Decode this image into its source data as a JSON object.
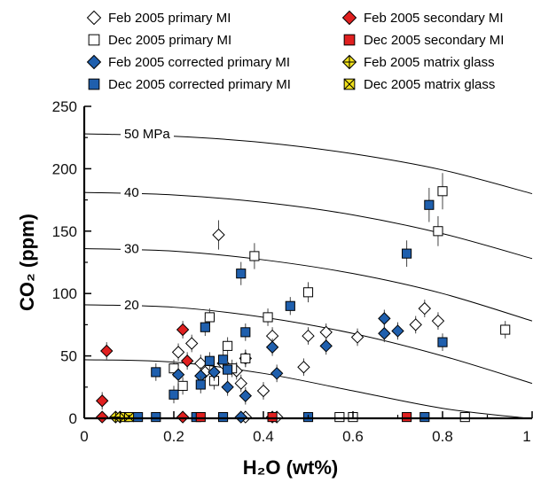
{
  "chart_data": {
    "type": "scatter",
    "xlabel": "H₂O (wt%)",
    "ylabel": "CO₂ (ppm)",
    "xlim": [
      0,
      1
    ],
    "ylim": [
      0,
      250
    ],
    "x_ticks": [
      "0",
      "0.2",
      "0.4",
      "0.6",
      "0.8",
      "1"
    ],
    "y_ticks": [
      "0",
      "50",
      "100",
      "150",
      "200",
      "250"
    ],
    "legend_position": "top (above plot, two columns)",
    "isobars": [
      {
        "label": "50 MPa",
        "y_at_zero": 228,
        "points": [
          [
            0,
            228
          ],
          [
            0.2,
            226
          ],
          [
            0.4,
            221
          ],
          [
            0.6,
            212
          ],
          [
            0.8,
            199
          ],
          [
            1,
            180
          ]
        ]
      },
      {
        "label": "40",
        "y_at_zero": 181,
        "points": [
          [
            0,
            181
          ],
          [
            0.2,
            179
          ],
          [
            0.4,
            173
          ],
          [
            0.6,
            163
          ],
          [
            0.8,
            148
          ],
          [
            1,
            128
          ]
        ]
      },
      {
        "label": "30",
        "y_at_zero": 136,
        "points": [
          [
            0,
            136
          ],
          [
            0.2,
            134
          ],
          [
            0.4,
            127
          ],
          [
            0.6,
            116
          ],
          [
            0.8,
            100
          ],
          [
            1,
            78
          ]
        ]
      },
      {
        "label": "20",
        "y_at_zero": 91,
        "points": [
          [
            0,
            91
          ],
          [
            0.2,
            89
          ],
          [
            0.4,
            81
          ],
          [
            0.6,
            68
          ],
          [
            0.8,
            50
          ],
          [
            1,
            28
          ]
        ]
      },
      {
        "label": "",
        "y_at_zero": 47,
        "points": [
          [
            0,
            47
          ],
          [
            0.2,
            45
          ],
          [
            0.4,
            36
          ],
          [
            0.6,
            22
          ],
          [
            0.8,
            8
          ],
          [
            0.99,
            0
          ]
        ]
      }
    ],
    "series": [
      {
        "name": "Feb 2005 primary MI",
        "marker": "diamond",
        "fill": "#ffffff",
        "stroke": "#000000",
        "points": [
          [
            0.3,
            147
          ],
          [
            0.21,
            53
          ],
          [
            0.24,
            60
          ],
          [
            0.26,
            44
          ],
          [
            0.27,
            37
          ],
          [
            0.31,
            44
          ],
          [
            0.34,
            38
          ],
          [
            0.36,
            48
          ],
          [
            0.35,
            28
          ],
          [
            0.4,
            22
          ],
          [
            0.42,
            66
          ],
          [
            0.49,
            41
          ],
          [
            0.5,
            66
          ],
          [
            0.54,
            69
          ],
          [
            0.61,
            65
          ],
          [
            0.74,
            75
          ],
          [
            0.76,
            88
          ],
          [
            0.79,
            78
          ],
          [
            0.36,
            1
          ],
          [
            0.42,
            1
          ],
          [
            0.43,
            1
          ]
        ]
      },
      {
        "name": "Dec 2005 primary MI",
        "marker": "square",
        "fill": "#ffffff",
        "stroke": "#000000",
        "points": [
          [
            0.2,
            40
          ],
          [
            0.22,
            26
          ],
          [
            0.28,
            81
          ],
          [
            0.29,
            30
          ],
          [
            0.32,
            58
          ],
          [
            0.33,
            40
          ],
          [
            0.36,
            48
          ],
          [
            0.38,
            130
          ],
          [
            0.41,
            81
          ],
          [
            0.5,
            101
          ],
          [
            0.57,
            1
          ],
          [
            0.6,
            1
          ],
          [
            0.79,
            150
          ],
          [
            0.8,
            182
          ],
          [
            0.85,
            1
          ],
          [
            0.94,
            71
          ]
        ]
      },
      {
        "name": "Feb 2005 corrected primary MI",
        "marker": "diamond",
        "fill": "#1f5fad",
        "stroke": "#000000",
        "points": [
          [
            0.21,
            35
          ],
          [
            0.26,
            34
          ],
          [
            0.29,
            37
          ],
          [
            0.32,
            25
          ],
          [
            0.36,
            18
          ],
          [
            0.42,
            57
          ],
          [
            0.43,
            36
          ],
          [
            0.54,
            58
          ],
          [
            0.67,
            80
          ],
          [
            0.67,
            68
          ],
          [
            0.7,
            70
          ],
          [
            0.35,
            1
          ]
        ]
      },
      {
        "name": "Dec 2005 corrected primary MI",
        "marker": "square",
        "fill": "#1f5fad",
        "stroke": "#000000",
        "points": [
          [
            0.16,
            37
          ],
          [
            0.2,
            19
          ],
          [
            0.26,
            27
          ],
          [
            0.27,
            73
          ],
          [
            0.28,
            46
          ],
          [
            0.31,
            47
          ],
          [
            0.32,
            39
          ],
          [
            0.35,
            116
          ],
          [
            0.36,
            69
          ],
          [
            0.46,
            90
          ],
          [
            0.72,
            132
          ],
          [
            0.77,
            171
          ],
          [
            0.8,
            61
          ],
          [
            0.12,
            1
          ],
          [
            0.16,
            1
          ],
          [
            0.25,
            1
          ],
          [
            0.31,
            1
          ],
          [
            0.5,
            1
          ],
          [
            0.76,
            1
          ]
        ]
      },
      {
        "name": "Feb 2005 secondary MI",
        "marker": "diamond",
        "fill": "#e02020",
        "stroke": "#000000",
        "points": [
          [
            0.04,
            14
          ],
          [
            0.05,
            54
          ],
          [
            0.22,
            71
          ],
          [
            0.23,
            46
          ],
          [
            0.04,
            1
          ],
          [
            0.22,
            1
          ]
        ]
      },
      {
        "name": "Dec 2005 secondary MI",
        "marker": "square",
        "fill": "#e02020",
        "stroke": "#000000",
        "points": [
          [
            0.26,
            1
          ],
          [
            0.42,
            1
          ],
          [
            0.72,
            1
          ]
        ]
      },
      {
        "name": "Feb 2005 matrix glass",
        "marker": "diamond-cross",
        "fill": "#f2e21b",
        "stroke": "#000000",
        "points": [
          [
            0.07,
            1
          ],
          [
            0.08,
            1
          ]
        ]
      },
      {
        "name": "Dec 2005 matrix glass",
        "marker": "square-x",
        "fill": "#f2e21b",
        "stroke": "#000000",
        "points": [
          [
            0.09,
            1
          ],
          [
            0.1,
            1
          ]
        ]
      }
    ]
  }
}
